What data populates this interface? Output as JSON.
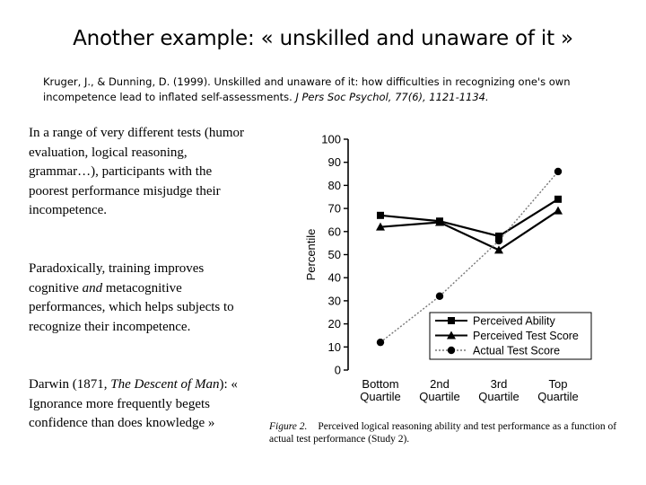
{
  "slide": {
    "title": "Another example: « unskilled and unaware of it »",
    "citation": {
      "main": "Kruger, J., & Dunning, D. (1999). Unskilled and unaware of it: how difficulties in recognizing one's own incompetence lead to inflated self-assessments. ",
      "journal": "J Pers Soc Psychol, 77(6), 1121-1134."
    },
    "paragraphs": {
      "p1": "In a range of very different tests (humor evaluation, logical reasoning, grammar…), participants with the poorest performance misjudge their incompetence.",
      "p2_a": "Paradoxically, training improves cognitive ",
      "p2_em": "and",
      "p2_b": " metacognitive performances, which helps subjects to recognize their incompetence.",
      "p3_a": "Darwin (1871, ",
      "p3_em": "The Descent of Man",
      "p3_b": "): « Ignorance more frequently begets confidence than does knowledge »"
    }
  },
  "chart_data": {
    "type": "line",
    "categories": [
      [
        "Bottom",
        "Quartile"
      ],
      [
        "2nd",
        "Quartile"
      ],
      [
        "3rd",
        "Quartile"
      ],
      [
        "Top",
        "Quartile"
      ]
    ],
    "ylabel": "Percentile",
    "ylim": [
      0,
      100
    ],
    "yticks": [
      0,
      10,
      20,
      30,
      40,
      50,
      60,
      70,
      80,
      90,
      100
    ],
    "series": [
      {
        "name": "Perceived Ability",
        "values": [
          67,
          64.5,
          58,
          74
        ],
        "marker": "square",
        "style": "solid"
      },
      {
        "name": "Perceived Test Score",
        "values": [
          62,
          64,
          52,
          69
        ],
        "marker": "triangle",
        "style": "solid"
      },
      {
        "name": "Actual Test Score",
        "values": [
          12,
          32,
          56,
          86
        ],
        "marker": "circle",
        "style": "dashed"
      }
    ],
    "caption": {
      "label": "Figure 2.",
      "text": "Perceived logical reasoning ability and test performance as a function of actual test performance (Study 2)."
    }
  }
}
